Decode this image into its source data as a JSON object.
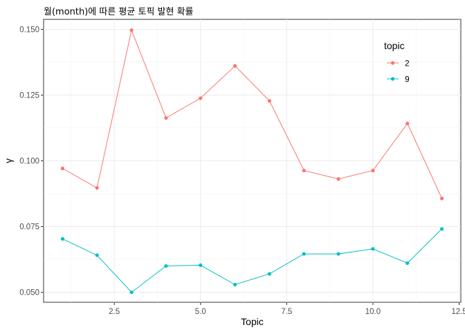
{
  "chart_data": {
    "type": "line",
    "title": "월(month)에 따른 평균 토픽 발현 확률",
    "xlabel": "Topic",
    "ylabel": "γ",
    "xlim": [
      0.45,
      12.55
    ],
    "ylim": [
      0.0462,
      0.1538
    ],
    "x_ticks": [
      2.5,
      5.0,
      7.5,
      10.0,
      12.5
    ],
    "x_tick_labels": [
      "2.5",
      "5.0",
      "7.5",
      "10.0",
      "12.5"
    ],
    "y_ticks": [
      0.05,
      0.075,
      0.1,
      0.125,
      0.15
    ],
    "y_tick_labels": [
      "0.050",
      "0.075",
      "0.100",
      "0.125",
      "0.150"
    ],
    "grid": true,
    "legend": {
      "title": "topic",
      "position": "top-right"
    },
    "x": [
      1,
      2,
      3,
      4,
      5,
      6,
      7,
      8,
      9,
      10,
      11,
      12
    ],
    "series": [
      {
        "name": "2",
        "color": "#F8766D",
        "values": [
          0.0971,
          0.0897,
          0.1497,
          0.1163,
          0.1238,
          0.1361,
          0.1228,
          0.0963,
          0.0931,
          0.0963,
          0.1142,
          0.0857
        ]
      },
      {
        "name": "9",
        "color": "#00BFC4",
        "values": [
          0.0703,
          0.0641,
          0.05,
          0.06,
          0.0603,
          0.0529,
          0.057,
          0.0646,
          0.0646,
          0.0665,
          0.0611,
          0.0741
        ]
      }
    ]
  }
}
